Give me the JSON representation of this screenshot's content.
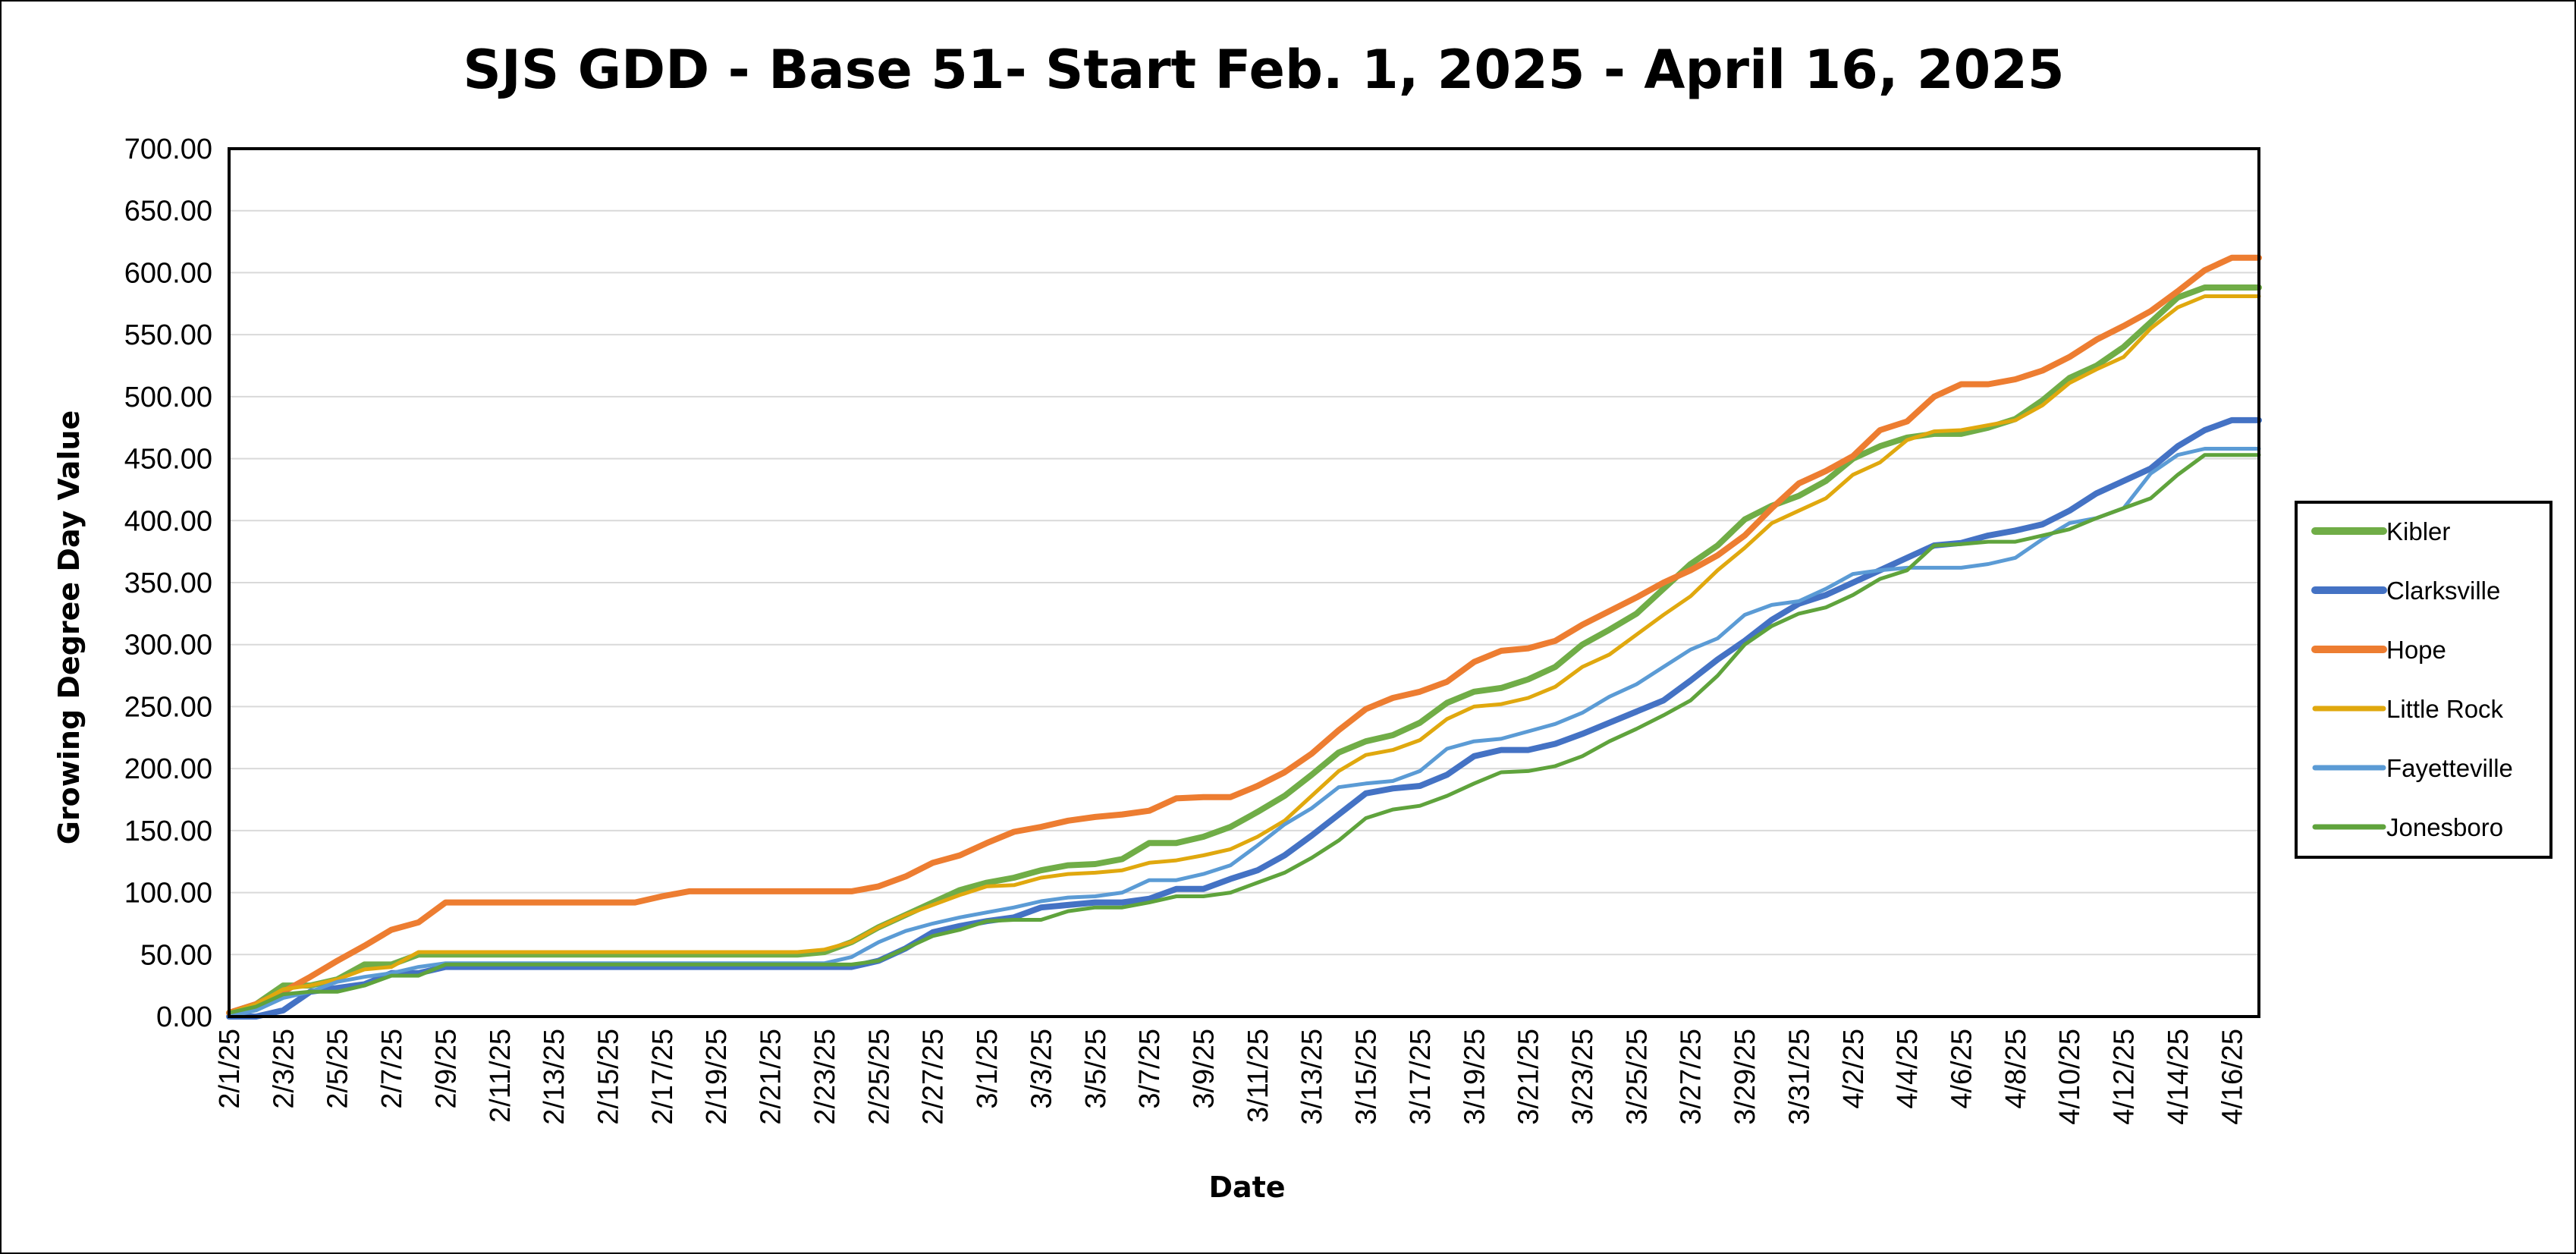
{
  "chart_data": {
    "type": "line",
    "title": "SJS GDD - Base 51- Start Feb. 1, 2025 - April 16, 2025",
    "xlabel": "Date",
    "ylabel": "Growing Degree Day Value",
    "ylim": [
      0,
      700
    ],
    "ytick_step": 50,
    "yticks": [
      "0.00",
      "50.00",
      "100.00",
      "150.00",
      "200.00",
      "250.00",
      "300.00",
      "350.00",
      "400.00",
      "450.00",
      "500.00",
      "550.00",
      "600.00",
      "650.00",
      "700.00"
    ],
    "grid": "horizontal",
    "legend_position": "right",
    "x": [
      "2/1/25",
      "2/2/25",
      "2/3/25",
      "2/4/25",
      "2/5/25",
      "2/6/25",
      "2/7/25",
      "2/8/25",
      "2/9/25",
      "2/10/25",
      "2/11/25",
      "2/12/25",
      "2/13/25",
      "2/14/25",
      "2/15/25",
      "2/16/25",
      "2/17/25",
      "2/18/25",
      "2/19/25",
      "2/20/25",
      "2/21/25",
      "2/22/25",
      "2/23/25",
      "2/24/25",
      "2/25/25",
      "2/26/25",
      "2/27/25",
      "2/28/25",
      "3/1/25",
      "3/2/25",
      "3/3/25",
      "3/4/25",
      "3/5/25",
      "3/6/25",
      "3/7/25",
      "3/8/25",
      "3/9/25",
      "3/10/25",
      "3/11/25",
      "3/12/25",
      "3/13/25",
      "3/14/25",
      "3/15/25",
      "3/16/25",
      "3/17/25",
      "3/18/25",
      "3/19/25",
      "3/20/25",
      "3/21/25",
      "3/22/25",
      "3/23/25",
      "3/24/25",
      "3/25/25",
      "3/26/25",
      "3/27/25",
      "3/28/25",
      "3/29/25",
      "3/30/25",
      "3/31/25",
      "4/1/25",
      "4/2/25",
      "4/3/25",
      "4/4/25",
      "4/5/25",
      "4/6/25",
      "4/7/25",
      "4/8/25",
      "4/9/25",
      "4/10/25",
      "4/11/25",
      "4/12/25",
      "4/13/25",
      "4/14/25",
      "4/15/25",
      "4/16/25",
      "4/17/25"
    ],
    "xtick_labels": [
      "2/1/25",
      "2/3/25",
      "2/5/25",
      "2/7/25",
      "2/9/25",
      "2/11/25",
      "2/13/25",
      "2/15/25",
      "2/17/25",
      "2/19/25",
      "2/21/25",
      "2/23/25",
      "2/25/25",
      "2/27/25",
      "3/1/25",
      "3/3/25",
      "3/5/25",
      "3/7/25",
      "3/9/25",
      "3/11/25",
      "3/13/25",
      "3/15/25",
      "3/17/25",
      "3/19/25",
      "3/21/25",
      "3/23/25",
      "3/25/25",
      "3/27/25",
      "3/29/25",
      "3/31/25",
      "4/2/25",
      "4/4/25",
      "4/6/25",
      "4/8/25",
      "4/10/25",
      "4/12/25",
      "4/14/25",
      "4/16/25"
    ],
    "series": [
      {
        "name": "Kibler",
        "color": "#70AD47",
        "width": 8,
        "values": [
          3,
          10,
          25,
          25,
          30,
          42,
          42,
          50,
          50,
          50,
          50,
          50,
          50,
          50,
          50,
          50,
          50,
          50,
          50,
          50,
          50,
          50,
          52,
          60,
          72,
          82,
          92,
          102,
          108,
          112,
          118,
          122,
          123,
          127,
          140,
          140,
          145,
          153,
          165,
          178,
          195,
          213,
          222,
          227,
          237,
          253,
          262,
          265,
          272,
          282,
          300,
          312,
          325,
          345,
          365,
          380,
          401,
          412,
          420,
          432,
          450,
          460,
          467,
          470,
          470,
          475,
          482,
          497,
          515,
          525,
          540,
          560,
          580,
          588,
          588,
          588
        ]
      },
      {
        "name": "Clarksville",
        "color": "#4472C4",
        "width": 8,
        "values": [
          0,
          0,
          5,
          20,
          23,
          26,
          35,
          35,
          40,
          40,
          40,
          40,
          40,
          40,
          40,
          40,
          40,
          40,
          40,
          40,
          40,
          40,
          40,
          40,
          45,
          55,
          68,
          73,
          77,
          80,
          88,
          90,
          92,
          92,
          95,
          103,
          103,
          111,
          118,
          130,
          146,
          163,
          180,
          184,
          186,
          195,
          210,
          215,
          215,
          220,
          228,
          237,
          246,
          255,
          271,
          288,
          303,
          320,
          333,
          340,
          350,
          360,
          370,
          380,
          382,
          388,
          392,
          397,
          408,
          422,
          432,
          442,
          460,
          473,
          481,
          481
        ]
      },
      {
        "name": "Hope",
        "color": "#ED7D31",
        "width": 8,
        "values": [
          3,
          10,
          20,
          32,
          45,
          57,
          70,
          76,
          92,
          92,
          92,
          92,
          92,
          92,
          92,
          92,
          97,
          101,
          101,
          101,
          101,
          101,
          101,
          101,
          105,
          113,
          124,
          130,
          140,
          149,
          153,
          158,
          161,
          163,
          166,
          176,
          177,
          177,
          186,
          197,
          212,
          231,
          248,
          257,
          262,
          270,
          286,
          295,
          297,
          303,
          316,
          327,
          338,
          350,
          360,
          372,
          388,
          410,
          430,
          440,
          452,
          473,
          480,
          500,
          510,
          510,
          514,
          521,
          532,
          546,
          557,
          569,
          585,
          602,
          612,
          612
        ]
      },
      {
        "name": "Little Rock",
        "color": "#E0A80E",
        "width": 5,
        "values": [
          3,
          10,
          22,
          25,
          30,
          38,
          40,
          52,
          52,
          52,
          52,
          52,
          52,
          52,
          52,
          52,
          52,
          52,
          52,
          52,
          52,
          52,
          54,
          60,
          72,
          82,
          90,
          98,
          105,
          106,
          112,
          115,
          116,
          118,
          124,
          126,
          130,
          135,
          145,
          158,
          178,
          198,
          211,
          215,
          223,
          240,
          250,
          252,
          257,
          266,
          282,
          292,
          308,
          324,
          339,
          360,
          378,
          398,
          408,
          418,
          437,
          447,
          465,
          472,
          473,
          477,
          481,
          493,
          511,
          522,
          532,
          555,
          572,
          581,
          581,
          581
        ]
      },
      {
        "name": "Fayetteville",
        "color": "#5B9BD5",
        "width": 5,
        "values": [
          0,
          5,
          15,
          20,
          28,
          32,
          35,
          40,
          43,
          43,
          43,
          43,
          43,
          43,
          43,
          43,
          43,
          43,
          43,
          43,
          43,
          43,
          43,
          48,
          60,
          69,
          75,
          80,
          84,
          88,
          93,
          96,
          97,
          100,
          110,
          110,
          115,
          122,
          138,
          155,
          168,
          185,
          188,
          190,
          198,
          216,
          222,
          224,
          230,
          236,
          245,
          258,
          268,
          282,
          296,
          305,
          324,
          332,
          335,
          345,
          357,
          360,
          362,
          362,
          362,
          365,
          370,
          385,
          398,
          402,
          410,
          438,
          453,
          458,
          458,
          458
        ]
      },
      {
        "name": "Jonesboro",
        "color": "#5FA33C",
        "width": 5,
        "values": [
          3,
          8,
          18,
          20,
          20,
          25,
          33,
          33,
          42,
          42,
          42,
          42,
          42,
          42,
          42,
          42,
          42,
          42,
          42,
          42,
          42,
          42,
          42,
          42,
          45,
          55,
          65,
          70,
          77,
          78,
          78,
          85,
          88,
          88,
          92,
          97,
          97,
          100,
          108,
          116,
          128,
          142,
          160,
          167,
          170,
          178,
          188,
          197,
          198,
          202,
          210,
          222,
          232,
          243,
          255,
          275,
          300,
          315,
          325,
          330,
          340,
          353,
          360,
          380,
          381,
          383,
          383,
          388,
          393,
          402,
          410,
          418,
          437,
          453,
          453,
          453
        ]
      }
    ]
  }
}
